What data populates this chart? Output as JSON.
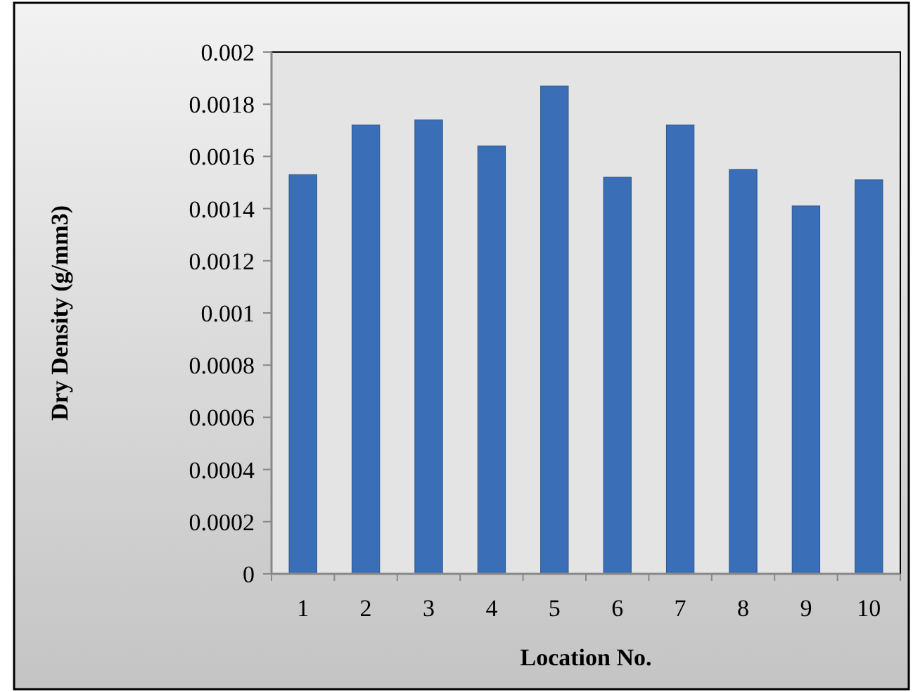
{
  "chart_data": {
    "type": "bar",
    "xlabel": "Location No.",
    "ylabel": "Dry Density (g/mm3)",
    "categories": [
      "1",
      "2",
      "3",
      "4",
      "5",
      "6",
      "7",
      "8",
      "9",
      "10"
    ],
    "values": [
      0.00153,
      0.00172,
      0.00174,
      0.00164,
      0.00187,
      0.00152,
      0.00172,
      0.00155,
      0.00141,
      0.00151
    ],
    "color": "#3a6fb8",
    "ylim": [
      0,
      0.002
    ],
    "yticks": [
      0,
      0.0002,
      0.0004,
      0.0006,
      0.0008,
      0.001,
      0.0012,
      0.0014,
      0.0016,
      0.0018,
      0.002
    ],
    "grid": false
  }
}
